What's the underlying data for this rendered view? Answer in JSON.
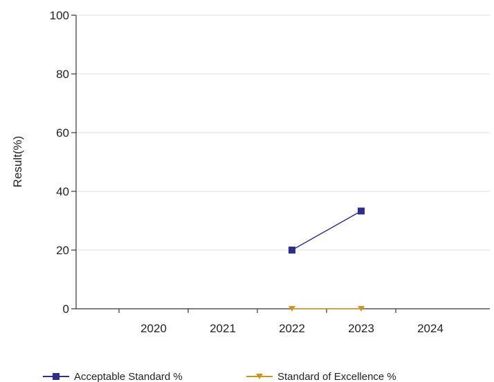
{
  "chart_data": {
    "type": "line",
    "title": "",
    "xlabel": "",
    "ylabel": "Result(%)",
    "x": [
      "2020",
      "2021",
      "2022",
      "2023",
      "2024"
    ],
    "ylim": [
      0,
      100
    ],
    "yticks": [
      0,
      20,
      40,
      60,
      80,
      100
    ],
    "grid": "horizontal",
    "legend_position": "bottom",
    "series": [
      {
        "name": "Acceptable Standard %",
        "color": "#2e2e8c",
        "marker": "square",
        "values": [
          null,
          null,
          20,
          33.3,
          null
        ]
      },
      {
        "name": "Standard of Excellence %",
        "color": "#c8961e",
        "marker": "triangle-down",
        "values": [
          null,
          null,
          0,
          0,
          null
        ]
      }
    ]
  }
}
